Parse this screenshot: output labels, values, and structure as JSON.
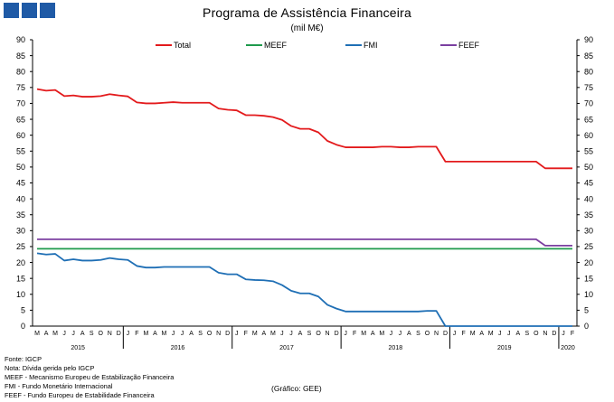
{
  "header": {
    "title": "Programa de Assistência Financeira",
    "subtitle": "(mil M€)"
  },
  "notes": [
    "Fonte: IGCP",
    "Nota: Dívida gerida pelo IGCP",
    "MEEF - Mecanismo Europeu de Estabilização Financeira",
    "FMI - Fundo Monetário Internacional",
    "FEEF - Fundo Europeu de Estabilidade Financeira"
  ],
  "credit": "(Gráfico: GEE)",
  "chart_data": {
    "type": "line",
    "title": "Programa de Assistência Financeira",
    "subtitle": "(mil M€)",
    "ylim": [
      0,
      90
    ],
    "y_ticks": [
      "0",
      "5",
      "10",
      "15",
      "20",
      "25",
      "30",
      "35",
      "40",
      "45",
      "50",
      "55",
      "60",
      "65",
      "70",
      "75",
      "80",
      "85",
      "90"
    ],
    "grid": false,
    "legend_position": "top",
    "x": [
      "M",
      "A",
      "M",
      "J",
      "J",
      "A",
      "S",
      "O",
      "N",
      "D",
      "J",
      "F",
      "M",
      "A",
      "M",
      "J",
      "J",
      "A",
      "S",
      "O",
      "N",
      "D",
      "J",
      "F",
      "M",
      "A",
      "M",
      "J",
      "J",
      "A",
      "S",
      "O",
      "N",
      "D",
      "J",
      "F",
      "M",
      "A",
      "M",
      "J",
      "J",
      "A",
      "S",
      "O",
      "N",
      "D",
      "J",
      "F",
      "M",
      "A",
      "M",
      "J",
      "J",
      "A",
      "S",
      "O",
      "N",
      "D",
      "J",
      "F"
    ],
    "years": [
      {
        "label": "2015",
        "start": 0,
        "count": 10
      },
      {
        "label": "2016",
        "start": 10,
        "count": 12
      },
      {
        "label": "2017",
        "start": 22,
        "count": 12
      },
      {
        "label": "2018",
        "start": 34,
        "count": 12
      },
      {
        "label": "2019",
        "start": 46,
        "count": 12
      },
      {
        "label": "2020",
        "start": 58,
        "count": 2
      }
    ],
    "series": [
      {
        "name": "Total",
        "color": "#e31a1c",
        "values": [
          74.5,
          74.0,
          74.2,
          72.3,
          72.5,
          72.1,
          72.1,
          72.3,
          72.9,
          72.5,
          72.2,
          70.3,
          70.0,
          70.0,
          70.2,
          70.4,
          70.2,
          70.2,
          70.2,
          70.2,
          68.4,
          68.0,
          67.8,
          66.3,
          66.3,
          66.1,
          65.7,
          64.8,
          62.9,
          62.0,
          62.0,
          60.9,
          58.2,
          57.0,
          56.2,
          56.2,
          56.2,
          56.2,
          56.4,
          56.4,
          56.2,
          56.2,
          56.4,
          56.4,
          56.4,
          51.7,
          51.7,
          51.7,
          51.7,
          51.7,
          51.7,
          51.7,
          51.7,
          51.7,
          51.7,
          51.7,
          49.6,
          49.6,
          49.6,
          49.6
        ]
      },
      {
        "name": "MEEF",
        "color": "#1e9a4c",
        "values": [
          24.3,
          24.3,
          24.3,
          24.3,
          24.3,
          24.3,
          24.3,
          24.3,
          24.3,
          24.3,
          24.3,
          24.3,
          24.3,
          24.3,
          24.3,
          24.3,
          24.3,
          24.3,
          24.3,
          24.3,
          24.3,
          24.3,
          24.3,
          24.3,
          24.3,
          24.3,
          24.3,
          24.3,
          24.3,
          24.3,
          24.3,
          24.3,
          24.3,
          24.3,
          24.3,
          24.3,
          24.3,
          24.3,
          24.3,
          24.3,
          24.3,
          24.3,
          24.3,
          24.3,
          24.3,
          24.3,
          24.3,
          24.3,
          24.3,
          24.3,
          24.3,
          24.3,
          24.3,
          24.3,
          24.3,
          24.3,
          24.3,
          24.3,
          24.3,
          24.3
        ]
      },
      {
        "name": "FMI",
        "color": "#1f6fb5",
        "values": [
          22.9,
          22.5,
          22.7,
          20.6,
          21.0,
          20.6,
          20.6,
          20.8,
          21.4,
          21.0,
          20.8,
          18.9,
          18.4,
          18.4,
          18.6,
          18.6,
          18.6,
          18.6,
          18.6,
          18.6,
          16.8,
          16.3,
          16.3,
          14.7,
          14.5,
          14.4,
          14.1,
          12.9,
          11.1,
          10.3,
          10.3,
          9.3,
          6.7,
          5.5,
          4.6,
          4.6,
          4.6,
          4.6,
          4.6,
          4.6,
          4.6,
          4.6,
          4.6,
          4.8,
          4.8,
          0,
          0,
          0,
          0,
          0,
          0,
          0,
          0,
          0,
          0,
          0,
          0,
          0,
          0,
          0
        ]
      },
      {
        "name": "FEEF",
        "color": "#7b3fa0",
        "values": [
          27.3,
          27.3,
          27.3,
          27.3,
          27.3,
          27.3,
          27.3,
          27.3,
          27.3,
          27.3,
          27.3,
          27.3,
          27.3,
          27.3,
          27.3,
          27.3,
          27.3,
          27.3,
          27.3,
          27.3,
          27.3,
          27.3,
          27.3,
          27.3,
          27.3,
          27.3,
          27.3,
          27.3,
          27.3,
          27.3,
          27.3,
          27.3,
          27.3,
          27.3,
          27.3,
          27.3,
          27.3,
          27.3,
          27.3,
          27.3,
          27.3,
          27.3,
          27.3,
          27.3,
          27.3,
          27.3,
          27.3,
          27.3,
          27.3,
          27.3,
          27.3,
          27.3,
          27.3,
          27.3,
          27.3,
          27.3,
          25.3,
          25.3,
          25.3,
          25.3
        ]
      }
    ]
  }
}
